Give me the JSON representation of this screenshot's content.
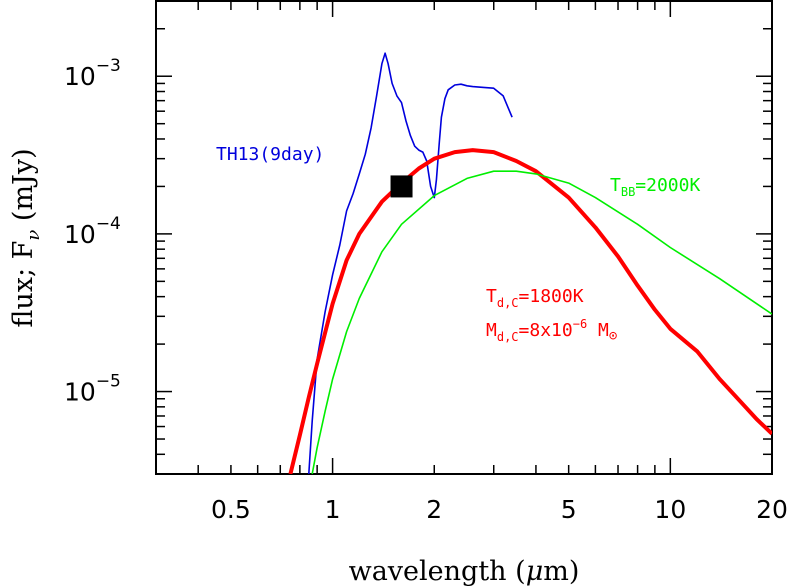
{
  "chart_data": {
    "type": "line",
    "title": "",
    "xlabel": {
      "prefix": "wavelength (",
      "symbol": "μ",
      "suffix": "m)"
    },
    "ylabel": {
      "prefix": "flux; F",
      "sub": "ν",
      "suffix": " (mJy)"
    },
    "xscale": "log",
    "yscale": "log",
    "xlim": [
      0.3,
      20
    ],
    "ylim": [
      3e-06,
      0.003
    ],
    "xticks": [
      {
        "value": 0.5,
        "label": "0.5"
      },
      {
        "value": 1,
        "label": "1"
      },
      {
        "value": 2,
        "label": "2"
      },
      {
        "value": 5,
        "label": "5"
      },
      {
        "value": 10,
        "label": "10"
      },
      {
        "value": 20,
        "label": "20"
      }
    ],
    "yticks": [
      {
        "value": 0.001,
        "base": "10",
        "exp": "−3"
      },
      {
        "value": 0.0001,
        "base": "10",
        "exp": "−4"
      },
      {
        "value": 1e-05,
        "base": "10",
        "exp": "−5"
      }
    ],
    "series": [
      {
        "name": "TH13(9day)",
        "color": "#0000dd",
        "style": "thin",
        "x": [
          0.85,
          0.87,
          0.9,
          0.95,
          1.0,
          1.05,
          1.1,
          1.15,
          1.2,
          1.25,
          1.3,
          1.35,
          1.4,
          1.43,
          1.46,
          1.5,
          1.55,
          1.6,
          1.65,
          1.7,
          1.75,
          1.8,
          1.85,
          1.9,
          1.95,
          2.0,
          2.03,
          2.07,
          2.1,
          2.15,
          2.2,
          2.3,
          2.4,
          2.5,
          2.6,
          2.8,
          3.0,
          3.2,
          3.4
        ],
        "y": [
          3e-06,
          6.5e-06,
          1.6e-05,
          3.2e-05,
          5.5e-05,
          8.5e-05,
          0.00014,
          0.00018,
          0.00024,
          0.00032,
          0.00047,
          0.00075,
          0.0012,
          0.0014,
          0.0012,
          0.0009,
          0.00075,
          0.00068,
          0.00052,
          0.00042,
          0.00036,
          0.00034,
          0.00033,
          0.00029,
          0.0002,
          0.00017,
          0.00022,
          0.00038,
          0.00055,
          0.00072,
          0.00082,
          0.00088,
          0.00089,
          0.00087,
          0.00086,
          0.00085,
          0.00084,
          0.00075,
          0.00055
        ]
      },
      {
        "name": "",
        "color": "#ff0000",
        "style": "thick",
        "x": [
          0.75,
          0.8,
          0.85,
          0.9,
          1.0,
          1.1,
          1.2,
          1.4,
          1.6,
          1.8,
          2.0,
          2.3,
          2.6,
          3.0,
          3.5,
          4.0,
          5.0,
          6.0,
          7.0,
          8.0,
          9.0,
          10.0,
          12.0,
          14.0,
          16.0,
          18.0,
          20.0
        ],
        "y": [
          3e-06,
          5.3e-06,
          9.2e-06,
          1.5e-05,
          3.6e-05,
          6.8e-05,
          0.0001,
          0.00016,
          0.00021,
          0.00026,
          0.0003,
          0.00033,
          0.00034,
          0.00033,
          0.00029,
          0.00025,
          0.00017,
          0.00011,
          7.2e-05,
          4.7e-05,
          3.3e-05,
          2.5e-05,
          1.8e-05,
          1.2e-05,
          8.8e-06,
          6.7e-06,
          5.4e-06
        ]
      },
      {
        "name": "",
        "color": "#00ee00",
        "style": "thin",
        "x": [
          0.87,
          0.9,
          0.95,
          1.0,
          1.1,
          1.2,
          1.4,
          1.6,
          2.0,
          2.5,
          3.0,
          3.5,
          4.0,
          5.0,
          6.0,
          8.0,
          10.0,
          14.0,
          20.0
        ],
        "y": [
          3e-06,
          4.4e-06,
          7.5e-06,
          1.2e-05,
          2.4e-05,
          3.9e-05,
          7.7e-05,
          0.000115,
          0.000175,
          0.000225,
          0.00025,
          0.00025,
          0.00024,
          0.00021,
          0.00017,
          0.000115,
          8.2e-05,
          5.2e-05,
          3.1e-05
        ]
      }
    ],
    "marker": {
      "x": 1.6,
      "y": 0.0002,
      "shape": "square",
      "color": "#000000"
    },
    "annotations": {
      "th13": {
        "text": "TH13(9day)",
        "color": "#0000dd"
      },
      "tbb": {
        "main": "T",
        "sub": "BB",
        "rest": "=2000K",
        "color": "#00ee00"
      },
      "tdc": {
        "main": "T",
        "sub": "d,C",
        "rest": "=1800K",
        "color": "#ff0000"
      },
      "mdc": {
        "main": "M",
        "sub": "d,C",
        "mid": "=8x10",
        "exp": "−6",
        "unit": " M",
        "sun_symbol": "⊙",
        "color": "#ff0000"
      }
    }
  }
}
